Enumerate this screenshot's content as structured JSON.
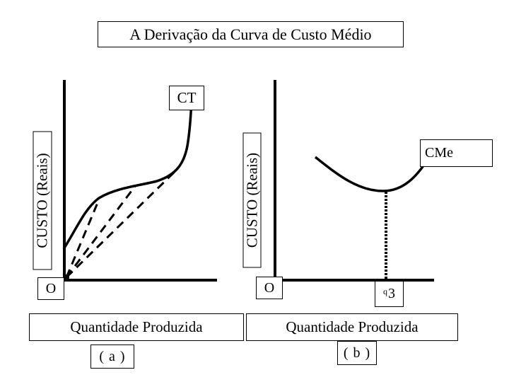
{
  "title": "A Derivação da Curva de Custo Médio",
  "panel_a": {
    "curve_label": "CT",
    "y_label": "CUSTO (Reais)",
    "origin_label": "O",
    "x_label": "Quantidade Produzida",
    "panel_label": "( a )"
  },
  "panel_b": {
    "curve_label": "CMe",
    "y_label": "CUSTO (Reais)",
    "origin_label": "O",
    "quantity_marker_prefix": "q",
    "quantity_marker_number": "3",
    "x_label": "Quantidade Produzida",
    "panel_label": "( b )"
  }
}
